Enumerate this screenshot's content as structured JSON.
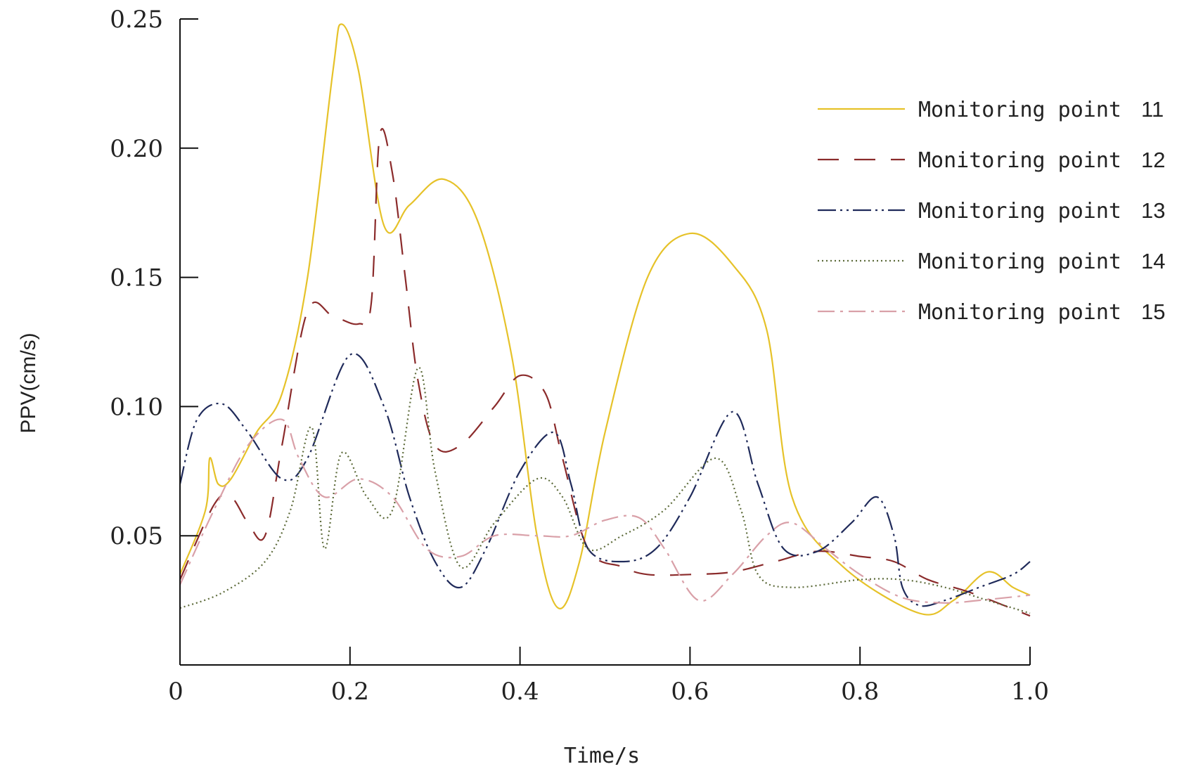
{
  "chart_data": {
    "type": "line",
    "title": "",
    "xlabel": "Time/s",
    "ylabel": "PPV(cm/s)",
    "xlim": [
      0,
      1.0
    ],
    "ylim": [
      0,
      0.25
    ],
    "x_ticks": [
      "0",
      "0.2",
      "0.4",
      "0.6",
      "0.8",
      "1.0"
    ],
    "x_tick_values": [
      0,
      0.2,
      0.4,
      0.6,
      0.8,
      1.0
    ],
    "y_ticks": [
      "0.05",
      "0.10",
      "0.15",
      "0.20",
      "0.25"
    ],
    "y_tick_values": [
      0.05,
      0.1,
      0.15,
      0.2,
      0.25
    ],
    "grid": false,
    "legend_position": "top-right",
    "series": [
      {
        "name": "Monitoring point",
        "number": "11",
        "color": "#e6c229",
        "style": "solid",
        "points": [
          [
            0,
            0.035
          ],
          [
            0.03,
            0.06
          ],
          [
            0.035,
            0.08
          ],
          [
            0.045,
            0.07
          ],
          [
            0.06,
            0.072
          ],
          [
            0.09,
            0.09
          ],
          [
            0.12,
            0.105
          ],
          [
            0.15,
            0.15
          ],
          [
            0.18,
            0.23
          ],
          [
            0.19,
            0.248
          ],
          [
            0.21,
            0.23
          ],
          [
            0.24,
            0.17
          ],
          [
            0.27,
            0.178
          ],
          [
            0.31,
            0.188
          ],
          [
            0.35,
            0.172
          ],
          [
            0.39,
            0.12
          ],
          [
            0.42,
            0.05
          ],
          [
            0.445,
            0.022
          ],
          [
            0.47,
            0.04
          ],
          [
            0.5,
            0.09
          ],
          [
            0.55,
            0.15
          ],
          [
            0.6,
            0.167
          ],
          [
            0.65,
            0.155
          ],
          [
            0.69,
            0.13
          ],
          [
            0.72,
            0.065
          ],
          [
            0.78,
            0.038
          ],
          [
            0.87,
            0.02
          ],
          [
            0.91,
            0.025
          ],
          [
            0.95,
            0.036
          ],
          [
            0.98,
            0.03
          ],
          [
            1.0,
            0.027
          ]
        ]
      },
      {
        "name": "Monitoring point",
        "number": "12",
        "color": "#8b2b2b",
        "style": "dashed",
        "points": [
          [
            0,
            0.033
          ],
          [
            0.04,
            0.062
          ],
          [
            0.06,
            0.065
          ],
          [
            0.08,
            0.055
          ],
          [
            0.1,
            0.05
          ],
          [
            0.12,
            0.085
          ],
          [
            0.15,
            0.137
          ],
          [
            0.18,
            0.135
          ],
          [
            0.21,
            0.132
          ],
          [
            0.225,
            0.14
          ],
          [
            0.235,
            0.205
          ],
          [
            0.25,
            0.19
          ],
          [
            0.265,
            0.15
          ],
          [
            0.28,
            0.11
          ],
          [
            0.3,
            0.085
          ],
          [
            0.33,
            0.085
          ],
          [
            0.37,
            0.1
          ],
          [
            0.4,
            0.112
          ],
          [
            0.43,
            0.105
          ],
          [
            0.45,
            0.08
          ],
          [
            0.48,
            0.045
          ],
          [
            0.52,
            0.038
          ],
          [
            0.55,
            0.035
          ],
          [
            0.6,
            0.035
          ],
          [
            0.65,
            0.036
          ],
          [
            0.7,
            0.04
          ],
          [
            0.75,
            0.044
          ],
          [
            0.8,
            0.042
          ],
          [
            0.84,
            0.04
          ],
          [
            0.88,
            0.033
          ],
          [
            0.93,
            0.028
          ],
          [
            1.0,
            0.019
          ]
        ]
      },
      {
        "name": "Monitoring point",
        "number": "13",
        "color": "#1f2a5a",
        "style": "dash-dot-dot",
        "points": [
          [
            0,
            0.07
          ],
          [
            0.02,
            0.095
          ],
          [
            0.05,
            0.101
          ],
          [
            0.08,
            0.09
          ],
          [
            0.12,
            0.072
          ],
          [
            0.15,
            0.08
          ],
          [
            0.2,
            0.12
          ],
          [
            0.24,
            0.1
          ],
          [
            0.27,
            0.065
          ],
          [
            0.3,
            0.04
          ],
          [
            0.33,
            0.03
          ],
          [
            0.36,
            0.045
          ],
          [
            0.4,
            0.075
          ],
          [
            0.44,
            0.09
          ],
          [
            0.46,
            0.07
          ],
          [
            0.48,
            0.045
          ],
          [
            0.52,
            0.04
          ],
          [
            0.56,
            0.045
          ],
          [
            0.6,
            0.065
          ],
          [
            0.65,
            0.098
          ],
          [
            0.68,
            0.07
          ],
          [
            0.71,
            0.045
          ],
          [
            0.75,
            0.044
          ],
          [
            0.79,
            0.055
          ],
          [
            0.82,
            0.065
          ],
          [
            0.84,
            0.05
          ],
          [
            0.85,
            0.03
          ],
          [
            0.87,
            0.023
          ],
          [
            0.9,
            0.025
          ],
          [
            0.94,
            0.03
          ],
          [
            0.98,
            0.035
          ],
          [
            1.0,
            0.04
          ]
        ]
      },
      {
        "name": "Monitoring point",
        "number": "14",
        "color": "#5d6b3a",
        "style": "dotted",
        "points": [
          [
            0,
            0.022
          ],
          [
            0.05,
            0.028
          ],
          [
            0.1,
            0.04
          ],
          [
            0.13,
            0.06
          ],
          [
            0.155,
            0.092
          ],
          [
            0.17,
            0.045
          ],
          [
            0.19,
            0.082
          ],
          [
            0.22,
            0.065
          ],
          [
            0.25,
            0.06
          ],
          [
            0.28,
            0.115
          ],
          [
            0.3,
            0.075
          ],
          [
            0.33,
            0.038
          ],
          [
            0.37,
            0.055
          ],
          [
            0.42,
            0.072
          ],
          [
            0.45,
            0.065
          ],
          [
            0.48,
            0.045
          ],
          [
            0.52,
            0.05
          ],
          [
            0.57,
            0.06
          ],
          [
            0.63,
            0.08
          ],
          [
            0.66,
            0.06
          ],
          [
            0.68,
            0.035
          ],
          [
            0.72,
            0.03
          ],
          [
            0.8,
            0.033
          ],
          [
            0.85,
            0.033
          ],
          [
            0.9,
            0.03
          ],
          [
            0.95,
            0.025
          ],
          [
            1.0,
            0.02
          ]
        ]
      },
      {
        "name": "Monitoring point",
        "number": "15",
        "color": "#d9a0a8",
        "style": "dash-dot",
        "points": [
          [
            0,
            0.031
          ],
          [
            0.04,
            0.06
          ],
          [
            0.08,
            0.085
          ],
          [
            0.12,
            0.095
          ],
          [
            0.14,
            0.08
          ],
          [
            0.17,
            0.065
          ],
          [
            0.21,
            0.072
          ],
          [
            0.25,
            0.065
          ],
          [
            0.29,
            0.045
          ],
          [
            0.33,
            0.042
          ],
          [
            0.37,
            0.05
          ],
          [
            0.42,
            0.05
          ],
          [
            0.46,
            0.05
          ],
          [
            0.5,
            0.056
          ],
          [
            0.54,
            0.057
          ],
          [
            0.57,
            0.045
          ],
          [
            0.61,
            0.025
          ],
          [
            0.65,
            0.035
          ],
          [
            0.69,
            0.05
          ],
          [
            0.72,
            0.055
          ],
          [
            0.76,
            0.045
          ],
          [
            0.8,
            0.035
          ],
          [
            0.85,
            0.026
          ],
          [
            0.9,
            0.024
          ],
          [
            0.94,
            0.025
          ],
          [
            1.0,
            0.027
          ]
        ]
      }
    ]
  }
}
